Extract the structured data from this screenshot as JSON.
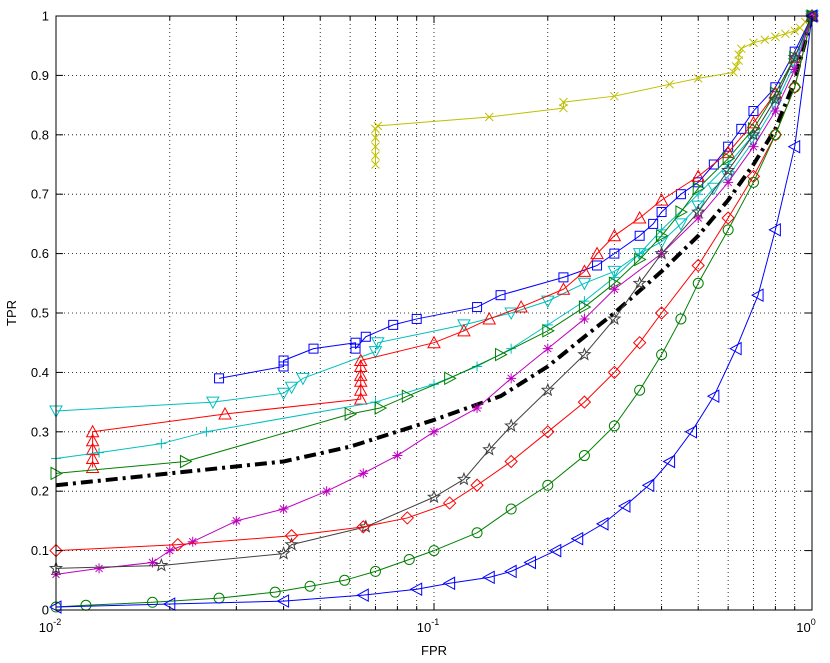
{
  "chart_data": {
    "type": "line",
    "title": "",
    "xlabel": "FPR",
    "ylabel": "TPR",
    "xscale": "log",
    "xlim": [
      0.01,
      1
    ],
    "ylim": [
      0,
      1
    ],
    "grid": true,
    "legend": "none",
    "x_ticks": [
      {
        "value": 0.01,
        "base": "10",
        "exp": "-2"
      },
      {
        "value": 0.1,
        "base": "10",
        "exp": "-1"
      },
      {
        "value": 1,
        "base": "10",
        "exp": "0"
      }
    ],
    "y_ticks": [
      {
        "value": 0,
        "label": "0"
      },
      {
        "value": 0.1,
        "label": "0.1"
      },
      {
        "value": 0.2,
        "label": "0.2"
      },
      {
        "value": 0.3,
        "label": "0.3"
      },
      {
        "value": 0.4,
        "label": "0.4"
      },
      {
        "value": 0.5,
        "label": "0.5"
      },
      {
        "value": 0.6,
        "label": "0.6"
      },
      {
        "value": 0.7,
        "label": "0.7"
      },
      {
        "value": 0.8,
        "label": "0.8"
      },
      {
        "value": 0.9,
        "label": "0.9"
      },
      {
        "value": 1,
        "label": "1"
      }
    ],
    "series": [
      {
        "color": "#bfbf00",
        "marker": "x",
        "dash": "none",
        "width": 1,
        "x": [
          0.07,
          0.07,
          0.07,
          0.07,
          0.07,
          0.071,
          0.14,
          0.22,
          0.22,
          0.3,
          0.42,
          0.5,
          0.62,
          0.63,
          0.64,
          0.64,
          0.65,
          0.7,
          0.75,
          0.8,
          0.85,
          0.9,
          0.93,
          0.96,
          1.0
        ],
        "y": [
          0.75,
          0.765,
          0.78,
          0.795,
          0.81,
          0.815,
          0.83,
          0.845,
          0.855,
          0.865,
          0.885,
          0.895,
          0.905,
          0.915,
          0.925,
          0.935,
          0.945,
          0.955,
          0.96,
          0.965,
          0.97,
          0.975,
          0.98,
          0.99,
          1.0
        ]
      },
      {
        "color": "#0000ff",
        "marker": "square",
        "dash": "none",
        "width": 1,
        "x": [
          0.027,
          0.04,
          0.04,
          0.048,
          0.062,
          0.062,
          0.066,
          0.078,
          0.09,
          0.13,
          0.15,
          0.22,
          0.27,
          0.3,
          0.35,
          0.38,
          0.4,
          0.45,
          0.5,
          0.55,
          0.6,
          0.65,
          0.7,
          0.8,
          0.9,
          1.0
        ],
        "y": [
          0.39,
          0.41,
          0.42,
          0.44,
          0.45,
          0.44,
          0.46,
          0.48,
          0.49,
          0.51,
          0.53,
          0.56,
          0.58,
          0.6,
          0.63,
          0.65,
          0.67,
          0.7,
          0.72,
          0.75,
          0.78,
          0.81,
          0.84,
          0.88,
          0.94,
          1.0
        ]
      },
      {
        "color": "#00bfbf",
        "marker": "triangle-down",
        "dash": "none",
        "width": 1,
        "x": [
          0.01,
          0.026,
          0.04,
          0.042,
          0.045,
          0.07,
          0.071,
          0.12,
          0.16,
          0.2,
          0.25,
          0.3,
          0.35,
          0.4,
          0.45,
          0.5,
          0.55,
          0.6,
          0.7,
          0.8,
          0.9,
          1.0
        ],
        "y": [
          0.335,
          0.35,
          0.365,
          0.375,
          0.39,
          0.435,
          0.45,
          0.48,
          0.5,
          0.52,
          0.55,
          0.57,
          0.6,
          0.62,
          0.65,
          0.68,
          0.71,
          0.73,
          0.79,
          0.85,
          0.92,
          1.0
        ]
      },
      {
        "color": "#ff0000",
        "marker": "triangle-up",
        "dash": "none",
        "width": 1,
        "x": [
          0.0125,
          0.0125,
          0.0125,
          0.0125,
          0.0125,
          0.028,
          0.064,
          0.064,
          0.064,
          0.064,
          0.064,
          0.064,
          0.1,
          0.12,
          0.14,
          0.17,
          0.22,
          0.25,
          0.27,
          0.3,
          0.35,
          0.4,
          0.5,
          0.6,
          0.7,
          0.8,
          0.9,
          1.0
        ],
        "y": [
          0.24,
          0.255,
          0.27,
          0.285,
          0.3,
          0.33,
          0.355,
          0.37,
          0.385,
          0.395,
          0.41,
          0.42,
          0.45,
          0.47,
          0.49,
          0.51,
          0.54,
          0.57,
          0.6,
          0.63,
          0.66,
          0.69,
          0.73,
          0.77,
          0.82,
          0.87,
          0.93,
          1.0
        ]
      },
      {
        "color": "#00bfbf",
        "marker": "plus",
        "dash": "none",
        "width": 1,
        "x": [
          0.01,
          0.013,
          0.019,
          0.025,
          0.07,
          0.1,
          0.13,
          0.16,
          0.2,
          0.25,
          0.3,
          0.35,
          0.4,
          0.5,
          0.6,
          0.7,
          0.8,
          0.9,
          1.0
        ],
        "y": [
          0.255,
          0.265,
          0.28,
          0.3,
          0.35,
          0.38,
          0.41,
          0.44,
          0.48,
          0.52,
          0.56,
          0.6,
          0.64,
          0.7,
          0.75,
          0.8,
          0.86,
          0.93,
          1.0
        ]
      },
      {
        "color": "#007f00",
        "marker": "triangle-right",
        "dash": "none",
        "width": 1,
        "x": [
          0.01,
          0.022,
          0.06,
          0.072,
          0.085,
          0.11,
          0.15,
          0.2,
          0.25,
          0.3,
          0.35,
          0.4,
          0.45,
          0.5,
          0.6,
          0.7,
          0.8,
          0.9,
          1.0
        ],
        "y": [
          0.23,
          0.25,
          0.33,
          0.34,
          0.36,
          0.39,
          0.43,
          0.47,
          0.51,
          0.55,
          0.59,
          0.63,
          0.67,
          0.71,
          0.76,
          0.81,
          0.87,
          0.93,
          1.0
        ]
      },
      {
        "color": "#000000",
        "marker": "none",
        "dash": "12,5,3,5",
        "width": 4,
        "x": [
          0.01,
          0.02,
          0.04,
          0.06,
          0.1,
          0.15,
          0.2,
          0.25,
          0.3,
          0.4,
          0.5,
          0.6,
          0.7,
          0.8,
          0.9,
          1.0
        ],
        "y": [
          0.21,
          0.23,
          0.25,
          0.275,
          0.32,
          0.36,
          0.41,
          0.46,
          0.5,
          0.57,
          0.63,
          0.69,
          0.75,
          0.81,
          0.89,
          1.0
        ]
      },
      {
        "color": "#bf00bf",
        "marker": "asterisk",
        "dash": "none",
        "width": 1,
        "x": [
          0.01,
          0.013,
          0.018,
          0.02,
          0.023,
          0.03,
          0.04,
          0.052,
          0.065,
          0.08,
          0.1,
          0.13,
          0.16,
          0.2,
          0.25,
          0.3,
          0.4,
          0.5,
          0.6,
          0.7,
          0.8,
          0.9,
          1.0
        ],
        "y": [
          0.06,
          0.07,
          0.08,
          0.1,
          0.115,
          0.15,
          0.17,
          0.2,
          0.23,
          0.26,
          0.3,
          0.34,
          0.39,
          0.44,
          0.49,
          0.54,
          0.6,
          0.66,
          0.72,
          0.78,
          0.84,
          0.91,
          1.0
        ]
      },
      {
        "color": "#404040",
        "marker": "star",
        "dash": "none",
        "width": 1,
        "x": [
          0.01,
          0.019,
          0.04,
          0.042,
          0.066,
          0.1,
          0.12,
          0.14,
          0.16,
          0.2,
          0.25,
          0.3,
          0.35,
          0.4,
          0.5,
          0.6,
          0.7,
          0.8,
          0.9,
          1.0
        ],
        "y": [
          0.07,
          0.075,
          0.095,
          0.11,
          0.14,
          0.19,
          0.22,
          0.27,
          0.31,
          0.37,
          0.43,
          0.49,
          0.55,
          0.6,
          0.67,
          0.74,
          0.8,
          0.86,
          0.93,
          1.0
        ]
      },
      {
        "color": "#ff0000",
        "marker": "diamond",
        "dash": "none",
        "width": 1,
        "x": [
          0.01,
          0.021,
          0.042,
          0.065,
          0.085,
          0.11,
          0.13,
          0.16,
          0.2,
          0.25,
          0.3,
          0.35,
          0.4,
          0.5,
          0.6,
          0.7,
          0.8,
          0.9,
          1.0
        ],
        "y": [
          0.1,
          0.11,
          0.125,
          0.14,
          0.155,
          0.18,
          0.21,
          0.25,
          0.3,
          0.35,
          0.4,
          0.45,
          0.5,
          0.58,
          0.66,
          0.73,
          0.8,
          0.88,
          1.0
        ]
      },
      {
        "color": "#007f00",
        "marker": "circle",
        "dash": "none",
        "width": 1,
        "x": [
          0.01,
          0.012,
          0.018,
          0.027,
          0.038,
          0.047,
          0.058,
          0.07,
          0.086,
          0.1,
          0.13,
          0.16,
          0.2,
          0.25,
          0.3,
          0.35,
          0.4,
          0.45,
          0.5,
          0.6,
          0.7,
          0.8,
          0.9,
          1.0
        ],
        "y": [
          0.005,
          0.008,
          0.013,
          0.02,
          0.03,
          0.04,
          0.05,
          0.065,
          0.085,
          0.1,
          0.13,
          0.17,
          0.21,
          0.26,
          0.31,
          0.37,
          0.43,
          0.49,
          0.55,
          0.64,
          0.72,
          0.8,
          0.88,
          1.0
        ]
      },
      {
        "color": "#0000ff",
        "marker": "triangle-left",
        "dash": "none",
        "width": 1,
        "x": [
          0.01,
          0.02,
          0.04,
          0.065,
          0.09,
          0.11,
          0.14,
          0.16,
          0.18,
          0.21,
          0.24,
          0.28,
          0.32,
          0.37,
          0.42,
          0.48,
          0.55,
          0.63,
          0.72,
          0.8,
          0.9,
          1.0
        ],
        "y": [
          0.005,
          0.01,
          0.015,
          0.025,
          0.035,
          0.045,
          0.055,
          0.065,
          0.08,
          0.1,
          0.12,
          0.145,
          0.175,
          0.21,
          0.25,
          0.3,
          0.36,
          0.44,
          0.53,
          0.64,
          0.78,
          1.0
        ]
      }
    ]
  }
}
